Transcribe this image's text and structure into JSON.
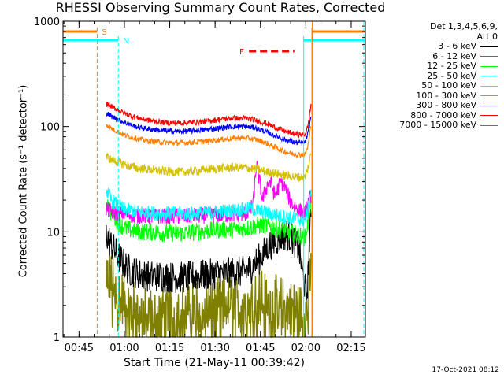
{
  "chart_data": {
    "type": "line",
    "title": "RHESSI Observing Summary Count Rates, Corrected",
    "xlabel": "Start Time (21-May-11 00:39:42)",
    "ylabel": "Corrected Count Rate (s⁻¹ detector⁻¹)",
    "yscale": "log",
    "ylim": [
      1,
      1000
    ],
    "xlim_minutes": [
      0,
      100
    ],
    "x_ticks": [
      {
        "label": "00:45",
        "minute": 5.3
      },
      {
        "label": "01:00",
        "minute": 20.3
      },
      {
        "label": "01:15",
        "minute": 35.3
      },
      {
        "label": "01:30",
        "minute": 50.3
      },
      {
        "label": "01:45",
        "minute": 65.3
      },
      {
        "label": "02:00",
        "minute": 80.3
      },
      {
        "label": "02:15",
        "minute": 95.3
      }
    ],
    "y_ticks": [
      {
        "label": "1",
        "value": 1
      },
      {
        "label": "10",
        "value": 10
      },
      {
        "label": "100",
        "value": 100
      },
      {
        "label": "1000",
        "value": 1000
      }
    ],
    "legend_header": [
      "Det 1,3,4,5,6,9,",
      "Att 0"
    ],
    "timestamp": "17-Oct-2021 08:12",
    "grid": false,
    "legend_position": "right",
    "series": [
      {
        "name": "3 - 6 keV",
        "color": "#000000",
        "x": [
          14.3,
          16,
          18,
          20,
          22,
          25,
          28,
          32,
          36,
          40,
          44,
          48,
          52,
          56,
          60,
          62,
          64,
          66,
          68,
          70,
          72,
          74,
          76,
          78,
          79,
          80,
          80.5,
          81,
          81.5,
          82
        ],
        "values": [
          9.5,
          7.5,
          6,
          5,
          4.3,
          4.0,
          3.8,
          3.8,
          3.7,
          3.7,
          3.8,
          3.9,
          4.0,
          4.1,
          4.2,
          4.5,
          5.2,
          6.0,
          7.5,
          8.0,
          9.0,
          9.5,
          8.5,
          7.0,
          4.5,
          3.0,
          2.5,
          3.5,
          8.0,
          14.0
        ]
      },
      {
        "name": "6 - 12 keV",
        "color": "#ff00ff",
        "x": [
          14.3,
          16,
          18,
          20,
          22,
          25,
          28,
          32,
          36,
          40,
          44,
          48,
          52,
          56,
          60,
          62,
          63,
          64,
          65,
          66,
          67,
          68,
          69,
          70,
          71,
          72,
          73,
          74,
          75,
          76,
          78,
          80,
          81,
          82
        ],
        "values": [
          16.5,
          15.5,
          15,
          15,
          14.5,
          14.2,
          14,
          14,
          14,
          14,
          14.2,
          14.3,
          14.5,
          14.5,
          14.8,
          16,
          20,
          45,
          30,
          20,
          25,
          30,
          28,
          22,
          25,
          30,
          28,
          24,
          20,
          18,
          16,
          15,
          18,
          22
        ]
      },
      {
        "name": "12 - 25 keV",
        "color": "#00ff00",
        "x": [
          14.3,
          16,
          18,
          20,
          22,
          25,
          28,
          32,
          36,
          40,
          44,
          48,
          52,
          56,
          60,
          62,
          64,
          66,
          68,
          70,
          72,
          74,
          76,
          78,
          80,
          81,
          82
        ],
        "values": [
          20,
          15,
          12.5,
          11,
          10.5,
          10,
          10,
          9.8,
          9.7,
          9.7,
          10,
          10.2,
          10.5,
          10.5,
          10.8,
          11,
          11.5,
          11.5,
          11.5,
          11,
          10.5,
          10,
          9.7,
          9.2,
          8.8,
          12,
          20
        ]
      },
      {
        "name": "25 - 50 keV",
        "color": "#00ffff",
        "x": [
          14.3,
          16,
          18,
          20,
          22,
          25,
          28,
          32,
          36,
          40,
          44,
          48,
          52,
          56,
          60,
          62,
          64,
          66,
          68,
          70,
          72,
          74,
          76,
          78,
          80,
          81,
          82
        ],
        "values": [
          25,
          20,
          18,
          16.5,
          16,
          15.5,
          15.2,
          15,
          15,
          15,
          15,
          15.2,
          15.5,
          16,
          16.5,
          16.5,
          16,
          15.5,
          15,
          14.5,
          14,
          13.8,
          13.5,
          13.2,
          13,
          16,
          25
        ]
      },
      {
        "name": "50 - 100 keV",
        "color": "#d4c000",
        "x": [
          14.3,
          16,
          18,
          20,
          22,
          25,
          28,
          32,
          36,
          40,
          44,
          48,
          52,
          56,
          60,
          62,
          64,
          66,
          68,
          70,
          72,
          74,
          76,
          78,
          80,
          81,
          82
        ],
        "values": [
          52,
          48,
          46,
          44,
          42,
          40,
          39,
          38,
          37,
          37,
          38,
          39,
          40,
          41,
          41,
          40,
          39,
          38,
          37,
          36,
          35,
          34,
          33.5,
          33,
          33,
          40,
          55
        ]
      },
      {
        "name": "100 - 300 keV",
        "color": "#ff7f00",
        "x": [
          14.3,
          16,
          18,
          20,
          22,
          25,
          28,
          32,
          36,
          40,
          44,
          48,
          52,
          56,
          60,
          62,
          64,
          66,
          68,
          70,
          72,
          74,
          76,
          78,
          80,
          81,
          82
        ],
        "values": [
          105,
          96,
          90,
          84,
          80,
          76,
          73,
          71,
          70,
          70,
          71,
          73,
          75,
          77,
          78,
          77,
          75,
          72,
          68,
          64,
          60,
          57,
          55,
          54,
          54,
          65,
          100
        ]
      },
      {
        "name": "300 - 800 keV",
        "color": "#0000ff",
        "x": [
          14.3,
          16,
          18,
          20,
          22,
          25,
          28,
          32,
          36,
          40,
          44,
          48,
          52,
          56,
          60,
          62,
          64,
          66,
          68,
          70,
          72,
          74,
          76,
          78,
          80,
          81,
          82
        ],
        "values": [
          135,
          125,
          118,
          110,
          105,
          98,
          95,
          92,
          90,
          90,
          92,
          94,
          97,
          100,
          100,
          99,
          96,
          92,
          87,
          82,
          78,
          74,
          71,
          70,
          70,
          85,
          125
        ]
      },
      {
        "name": "800 - 7000 keV",
        "color": "#ff0000",
        "x": [
          14.3,
          16,
          18,
          20,
          22,
          25,
          28,
          32,
          36,
          40,
          44,
          48,
          52,
          56,
          60,
          62,
          64,
          66,
          68,
          70,
          72,
          74,
          76,
          78,
          80,
          81,
          82
        ],
        "values": [
          165,
          155,
          145,
          135,
          128,
          120,
          115,
          110,
          108,
          108,
          110,
          113,
          117,
          120,
          120,
          118,
          114,
          110,
          105,
          99,
          94,
          89,
          86,
          84,
          84,
          100,
          160
        ]
      },
      {
        "name": "7000 - 15000 keV",
        "color": "#808000",
        "x": [
          14.3,
          16,
          18,
          20,
          22,
          25,
          28,
          32,
          36,
          40,
          44,
          48,
          52,
          56,
          60,
          62,
          64,
          66,
          68,
          70,
          72,
          74,
          76,
          78,
          80,
          81,
          82
        ],
        "values": [
          4.5,
          3.5,
          2.8,
          2.3,
          2.0,
          1.8,
          1.7,
          1.7,
          1.7,
          1.8,
          1.9,
          2.0,
          2.1,
          2.2,
          2.3,
          2.4,
          2.5,
          2.4,
          2.3,
          2.2,
          2.1,
          2.0,
          1.9,
          1.8,
          1.8,
          2.5,
          4.0
        ]
      }
    ],
    "annotations": {
      "saa": {
        "label": "S",
        "color": "#ff7f00",
        "spans": [
          [
            0,
            11.3
          ],
          [
            82.3,
            100
          ]
        ],
        "level": 800,
        "boundaries": [
          11.3,
          82.3
        ]
      },
      "night": {
        "label": "N",
        "color": "#00ffff",
        "spans": [
          [
            0,
            18.3
          ],
          [
            79.6,
            100
          ]
        ],
        "level": 660,
        "boundaries": [
          18.3,
          79.6
        ]
      },
      "flare": {
        "label": "F",
        "color": "#ff0000",
        "spans": [
          [
            61.5,
            76.5
          ]
        ],
        "level": 520
      }
    }
  }
}
